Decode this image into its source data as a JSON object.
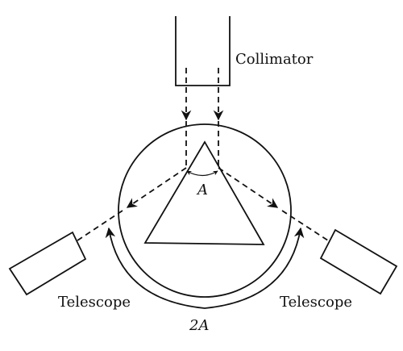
{
  "labels": {
    "collimator": "Collimator",
    "telescope_left": "Telescope",
    "telescope_right": "Telescope",
    "angle_a": "A",
    "angle_2a": "2A"
  }
}
